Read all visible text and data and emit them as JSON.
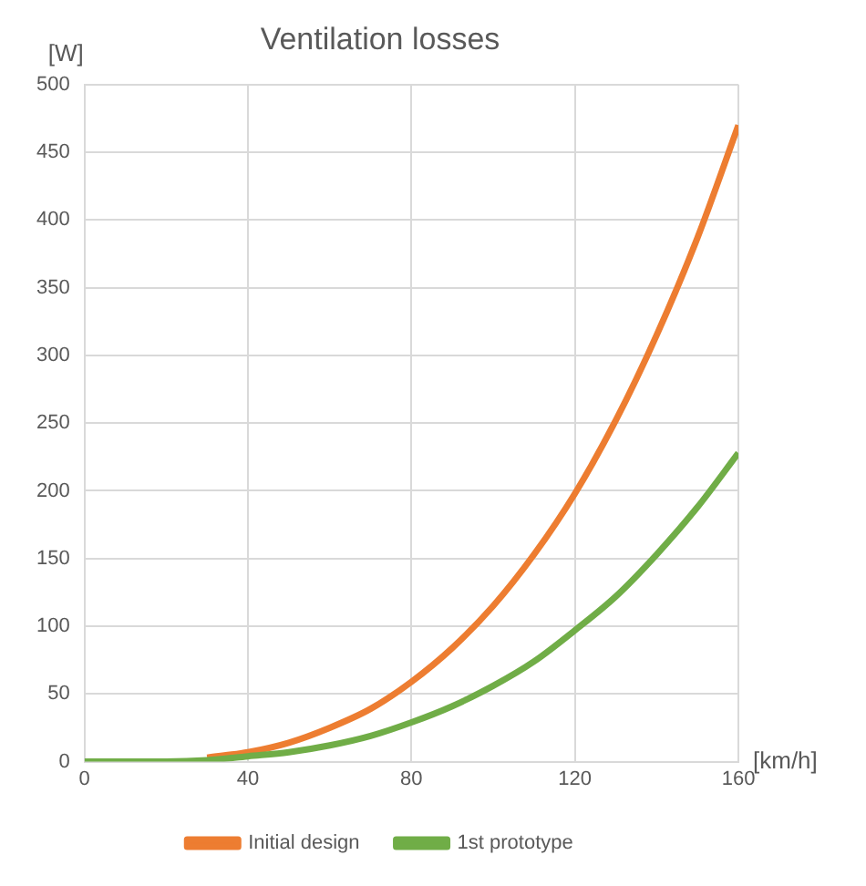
{
  "chart_data": {
    "type": "line",
    "title": "Ventilation losses",
    "xlabel": "[km/h]",
    "ylabel": "[W]",
    "x": [
      0,
      10,
      20,
      30,
      40,
      50,
      60,
      70,
      80,
      90,
      100,
      110,
      120,
      130,
      140,
      150,
      160
    ],
    "series": [
      {
        "name": "Initial design",
        "color": "#ed7d31",
        "values": [
          null,
          null,
          null,
          3,
          7,
          14,
          25,
          39,
          59,
          84,
          115,
          153,
          198,
          252,
          315,
          387,
          470
        ]
      },
      {
        "name": "1st prototype",
        "color": "#70ad47",
        "values": [
          0,
          0,
          0,
          1,
          4,
          7,
          12,
          19,
          29,
          41,
          56,
          74,
          97,
          122,
          153,
          188,
          228
        ]
      }
    ],
    "xlim": [
      0,
      160
    ],
    "xticks": [
      0,
      40,
      80,
      120,
      160
    ],
    "ylim": [
      0,
      500
    ],
    "yticks": [
      0,
      50,
      100,
      150,
      200,
      250,
      300,
      350,
      400,
      450,
      500
    ],
    "grid": true,
    "legend": "bottom",
    "marker": "none",
    "line_style": "solid"
  }
}
